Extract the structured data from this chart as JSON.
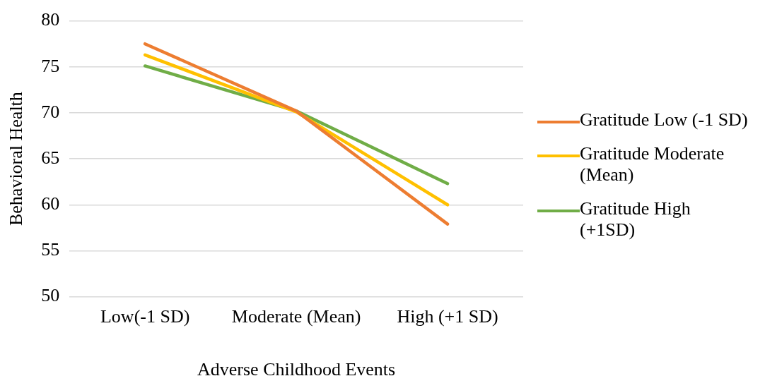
{
  "chart_data": {
    "type": "line",
    "xlabel": "Adverse Childhood Events",
    "ylabel": "Behavioral Health",
    "categories": [
      "Low(-1 SD)",
      "Moderate (Mean)",
      "High (+1 SD)"
    ],
    "series": [
      {
        "name": "Gratitude Low (-1 SD)",
        "color": "#ed7d31",
        "values": [
          77.5,
          70.2,
          57.9
        ]
      },
      {
        "name": "Gratitude Moderate (Mean)",
        "color": "#ffc000",
        "values": [
          76.3,
          70.1,
          60.0
        ]
      },
      {
        "name": "Gratitude High (+1SD)",
        "color": "#70ad47",
        "values": [
          75.1,
          70.2,
          62.3
        ]
      }
    ],
    "ylim": [
      50,
      80
    ],
    "yticks": [
      50,
      55,
      60,
      65,
      70,
      75,
      80
    ],
    "grid": "y",
    "legend": "right",
    "marker": "none",
    "line_style": "solid"
  }
}
